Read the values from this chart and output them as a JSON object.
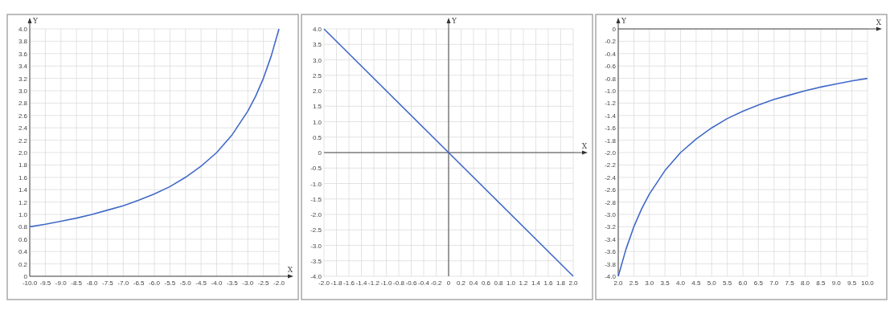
{
  "chart_data": [
    {
      "type": "line",
      "xlabel": "X",
      "ylabel": "Y",
      "color": "#4169c8",
      "grid": true,
      "x": [
        -10,
        -9.5,
        -9,
        -8.5,
        -8,
        -7.5,
        -7,
        -6.5,
        -6,
        -5.5,
        -5,
        -4.5,
        -4,
        -3.5,
        -3,
        -2.75,
        -2.5,
        -2.25,
        -2
      ],
      "values": [
        0.8,
        0.84,
        0.89,
        0.94,
        1.0,
        1.07,
        1.14,
        1.23,
        1.33,
        1.45,
        1.6,
        1.78,
        2.0,
        2.29,
        2.67,
        2.91,
        3.2,
        3.56,
        4.0
      ],
      "xlim": [
        -10,
        -2
      ],
      "ylim": [
        0,
        4
      ],
      "xticks": [
        {
          "value": -10,
          "label": "-10.0"
        },
        -9.5,
        {
          "value": -9,
          "label": "-9.0"
        },
        -8.5,
        {
          "value": -8,
          "label": "-8.0"
        },
        -7.5,
        {
          "value": -7,
          "label": "-7.0"
        },
        -6.5,
        {
          "value": -6,
          "label": "-6.0"
        },
        -5.5,
        {
          "value": -5,
          "label": "-5.0"
        },
        -4.5,
        {
          "value": -4,
          "label": "-4.0"
        },
        -3.5,
        {
          "value": -3,
          "label": "-3.0"
        },
        -2.5,
        {
          "value": -2,
          "label": "-2.0"
        }
      ],
      "yticks": [
        0,
        0.2,
        0.4,
        0.6,
        0.8,
        {
          "value": 1,
          "label": "1.0"
        },
        1.2,
        1.4,
        1.6,
        1.8,
        {
          "value": 2,
          "label": "2.0"
        },
        2.2,
        2.4,
        2.6,
        2.8,
        {
          "value": 3,
          "label": "3.0"
        },
        3.2,
        3.4,
        3.6,
        3.8,
        {
          "value": 4,
          "label": "4.0"
        }
      ]
    },
    {
      "type": "line",
      "xlabel": "X",
      "ylabel": "Y",
      "color": "#4169c8",
      "grid": true,
      "x": [
        -2,
        0,
        2
      ],
      "values": [
        4,
        0,
        -4
      ],
      "xlim": [
        -2,
        2
      ],
      "ylim": [
        -4,
        4
      ],
      "xticks": [
        {
          "value": -2,
          "label": "-2.0"
        },
        -1.8,
        -1.6,
        -1.4,
        -1.2,
        {
          "value": -1,
          "label": "-1.0"
        },
        -0.8,
        -0.6,
        -0.4,
        -0.2,
        0,
        0.2,
        0.4,
        0.6,
        0.8,
        {
          "value": 1,
          "label": "1.0"
        },
        1.2,
        1.4,
        1.6,
        1.8,
        {
          "value": 2,
          "label": "2.0"
        }
      ],
      "yticks": [
        {
          "value": -4,
          "label": "-4.0"
        },
        -3.5,
        {
          "value": -3,
          "label": "-3.0"
        },
        -2.5,
        {
          "value": -2,
          "label": "-2.0"
        },
        -1.5,
        {
          "value": -1,
          "label": "-1.0"
        },
        -0.5,
        0,
        0.5,
        {
          "value": 1,
          "label": "1.0"
        },
        1.5,
        {
          "value": 2,
          "label": "2.0"
        },
        2.5,
        {
          "value": 3,
          "label": "3.0"
        },
        3.5,
        {
          "value": 4,
          "label": "4.0"
        }
      ]
    },
    {
      "type": "line",
      "xlabel": "X",
      "ylabel": "Y",
      "color": "#4169c8",
      "grid": true,
      "x": [
        2,
        2.25,
        2.5,
        2.75,
        3,
        3.5,
        4,
        4.5,
        5,
        5.5,
        6,
        6.5,
        7,
        7.5,
        8,
        8.5,
        9,
        9.5,
        10
      ],
      "values": [
        -4.0,
        -3.56,
        -3.2,
        -2.91,
        -2.67,
        -2.29,
        -2.0,
        -1.78,
        -1.6,
        -1.45,
        -1.33,
        -1.23,
        -1.14,
        -1.07,
        -1.0,
        -0.94,
        -0.89,
        -0.84,
        -0.8
      ],
      "xlim": [
        2,
        10
      ],
      "ylim": [
        -4,
        0
      ],
      "xticks": [
        {
          "value": 2,
          "label": "2.0"
        },
        2.5,
        {
          "value": 3,
          "label": "3.0"
        },
        3.5,
        {
          "value": 4,
          "label": "4.0"
        },
        4.5,
        {
          "value": 5,
          "label": "5.0"
        },
        5.5,
        {
          "value": 6,
          "label": "6.0"
        },
        6.5,
        {
          "value": 7,
          "label": "7.0"
        },
        7.5,
        {
          "value": 8,
          "label": "8.0"
        },
        8.5,
        {
          "value": 9,
          "label": "9.0"
        },
        9.5,
        {
          "value": 10,
          "label": "10.0"
        }
      ],
      "yticks": [
        0,
        -0.2,
        -0.4,
        -0.6,
        -0.8,
        {
          "value": -1,
          "label": "-1.0"
        },
        -1.2,
        -1.4,
        -1.6,
        -1.8,
        {
          "value": -2,
          "label": "-2.0"
        },
        -2.2,
        -2.4,
        -2.6,
        -2.8,
        {
          "value": -3,
          "label": "-3.0"
        },
        -3.2,
        -3.4,
        -3.6,
        -3.8,
        {
          "value": -4,
          "label": "-4.0"
        }
      ]
    }
  ]
}
